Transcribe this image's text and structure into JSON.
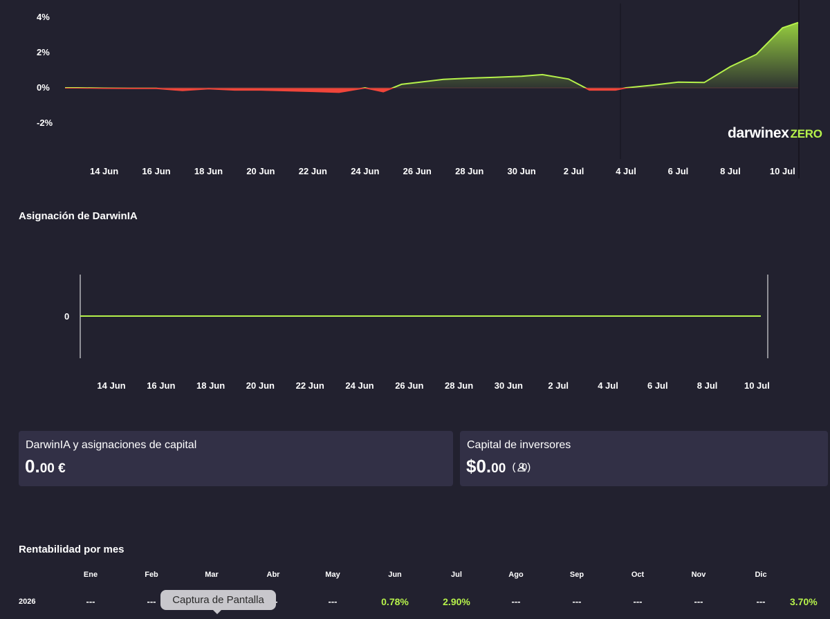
{
  "chart_data": [
    {
      "type": "area",
      "title": "",
      "brand": "darwinex",
      "brand_suffix": "ZERO",
      "y_ticks": [
        "4%",
        "2%",
        "0%",
        "-2%"
      ],
      "ylim": [
        -3,
        4.5
      ],
      "x_ticks": [
        "14 Jun",
        "16 Jun",
        "18 Jun",
        "20 Jun",
        "22 Jun",
        "24 Jun",
        "26 Jun",
        "28 Jun",
        "30 Jun",
        "2 Jul",
        "4 Jul",
        "6 Jul",
        "8 Jul",
        "10 Jul"
      ],
      "x": [
        12.5,
        13,
        14,
        15,
        16,
        17,
        18,
        19,
        20,
        21,
        22,
        23,
        24,
        24.7,
        25.4,
        26,
        27,
        28,
        29,
        30,
        30.8,
        31.8,
        32.6,
        33.6,
        34,
        35,
        36,
        37,
        38,
        39,
        40,
        40.6
      ],
      "values": [
        0,
        0,
        -0.02,
        -0.03,
        -0.03,
        -0.15,
        -0.05,
        -0.12,
        -0.12,
        -0.16,
        -0.2,
        -0.25,
        0,
        -0.22,
        0.2,
        0.3,
        0.48,
        0.55,
        0.6,
        0.66,
        0.75,
        0.5,
        -0.12,
        -0.12,
        0,
        0.15,
        0.32,
        0.3,
        1.2,
        1.9,
        3.4,
        3.7
      ],
      "colors": {
        "positive": "#b6f24b",
        "negative": "#f0453a"
      }
    },
    {
      "type": "line",
      "title": "Asignación de DarwinIA",
      "y_ticks": [
        "0"
      ],
      "x_ticks": [
        "14 Jun",
        "16 Jun",
        "18 Jun",
        "20 Jun",
        "22 Jun",
        "24 Jun",
        "26 Jun",
        "28 Jun",
        "30 Jun",
        "2 Jul",
        "4 Jul",
        "6 Jul",
        "8 Jul",
        "10 Jul"
      ],
      "values": [
        0
      ],
      "colors": {
        "line": "#b6f24b"
      }
    }
  ],
  "cards": [
    {
      "title": "DarwinIA y asignaciones de capital",
      "value_main": "0.",
      "value_small": "00 €",
      "extra": ""
    },
    {
      "title": "Capital de inversores",
      "value_main": "$0.",
      "value_small": "00",
      "extra": "(  0)"
    }
  ],
  "monthly": {
    "title": "Rentabilidad por mes",
    "months": [
      "Ene",
      "Feb",
      "Mar",
      "Abr",
      "May",
      "Jun",
      "Jul",
      "Ago",
      "Sep",
      "Oct",
      "Nov",
      "Dic"
    ],
    "rows": [
      {
        "year": "2026",
        "values": [
          "---",
          "---",
          "",
          "---",
          "---",
          "0.78%",
          "2.90%",
          "---",
          "---",
          "---",
          "---",
          "---"
        ],
        "total": "3.70%"
      }
    ]
  },
  "tooltip": "Captura de Pantalla"
}
